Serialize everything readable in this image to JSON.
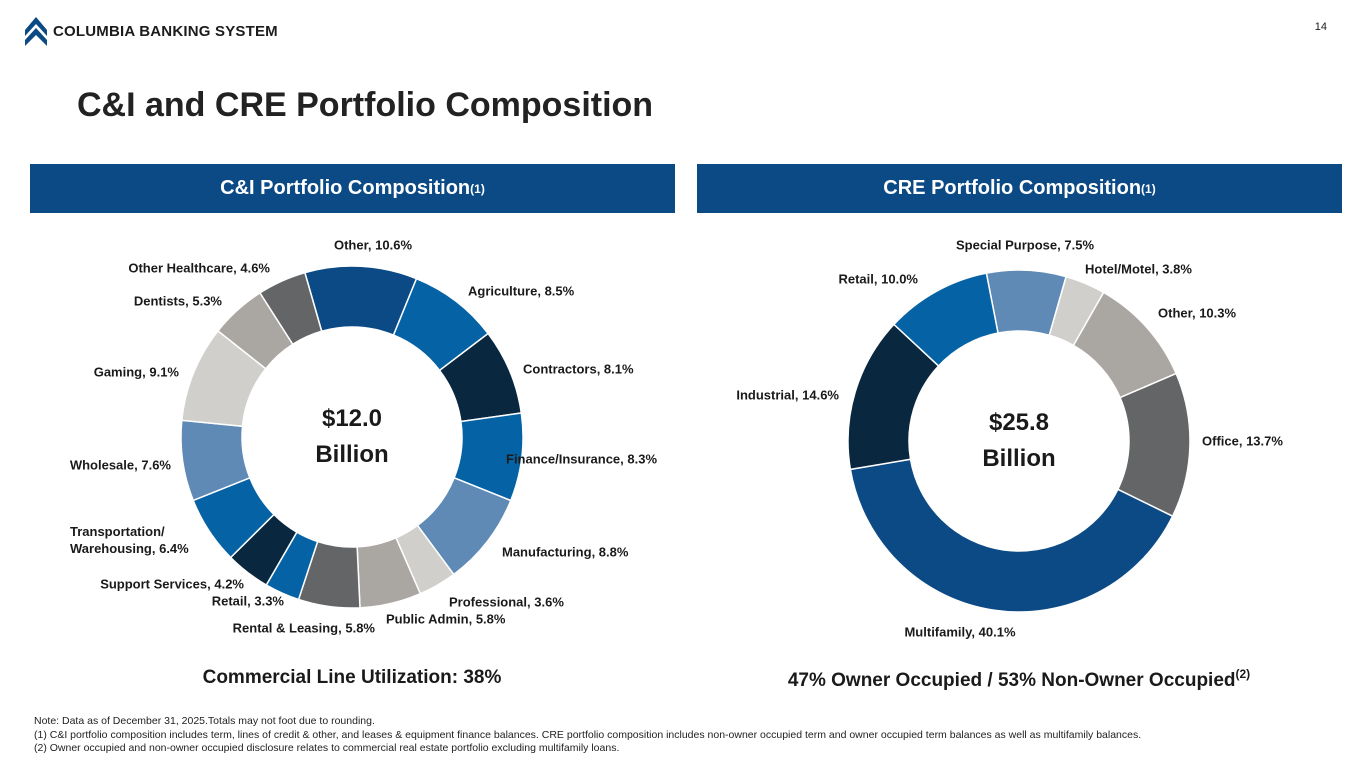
{
  "logo": "COLUMBIA BANKING SYSTEM",
  "page_number": "14",
  "title": "C&I and CRE Portfolio Composition",
  "chart_data": [
    {
      "type": "donut",
      "header": "C&I Portfolio Composition",
      "header_note": "(1)",
      "center_label": "$12.0 Billion",
      "categories": [
        "Other",
        "Agriculture",
        "Contractors",
        "Finance/Insurance",
        "Manufacturing",
        "Professional",
        "Public Admin",
        "Rental & Leasing",
        "Retail",
        "Support Services",
        "Transportation/ Warehousing",
        "Wholesale",
        "Gaming",
        "Dentists",
        "Other Healthcare"
      ],
      "values": [
        10.6,
        8.5,
        8.1,
        8.3,
        8.8,
        3.6,
        5.8,
        5.8,
        3.3,
        4.2,
        6.4,
        7.6,
        9.1,
        5.3,
        4.6
      ],
      "value_labels": [
        "10.6%",
        "8.5%",
        "8.1%",
        "8.3%",
        "8.8%",
        "3.6%",
        "5.8%",
        "5.8%",
        "3.3%",
        "4.2%",
        "6.4%",
        "7.6%",
        "9.1%",
        "5.3%",
        "4.6%"
      ],
      "colors": [
        "#0c4a85",
        "#0563a5",
        "#0a2740",
        "#0563a5",
        "#5f8ab5",
        "#d0cfcc",
        "#aaa6a2",
        "#646567",
        "#0563a5",
        "#0a2740",
        "#0563a5",
        "#5f8ab5",
        "#d0cfcc",
        "#aaa6a2",
        "#646567"
      ],
      "caption": "Commercial Line Utilization: 38%"
    },
    {
      "type": "donut",
      "header": "CRE Portfolio Composition",
      "header_note": "(1)",
      "center_label": "$25.8 Billion",
      "categories": [
        "Special Purpose",
        "Hotel/Motel",
        "Other",
        "Office",
        "Multifamily",
        "Industrial",
        "Retail"
      ],
      "values": [
        7.5,
        3.8,
        10.3,
        13.7,
        40.1,
        14.6,
        10.0
      ],
      "value_labels": [
        "7.5%",
        "3.8%",
        "10.3%",
        "13.7%",
        "40.1%",
        "14.6%",
        "10.0%"
      ],
      "colors": [
        "#5f8ab5",
        "#d0cfcc",
        "#aaa6a2",
        "#646567",
        "#0c4a85",
        "#0a2740",
        "#0563a5"
      ],
      "caption": "47% Owner Occupied / 53% Non-Owner Occupied",
      "caption_note": "(2)"
    }
  ],
  "notes": [
    "Note: Data as of December 31, 2025.Totals may not foot due to rounding.",
    "(1)  C&I portfolio composition includes term, lines of credit & other, and leases & equipment finance balances. CRE portfolio composition includes non-owner occupied term and owner occupied term balances as well as multifamily balances.",
    "(2)  Owner occupied and non-owner occupied disclosure relates to commercial real estate portfolio excluding multifamily loans."
  ]
}
